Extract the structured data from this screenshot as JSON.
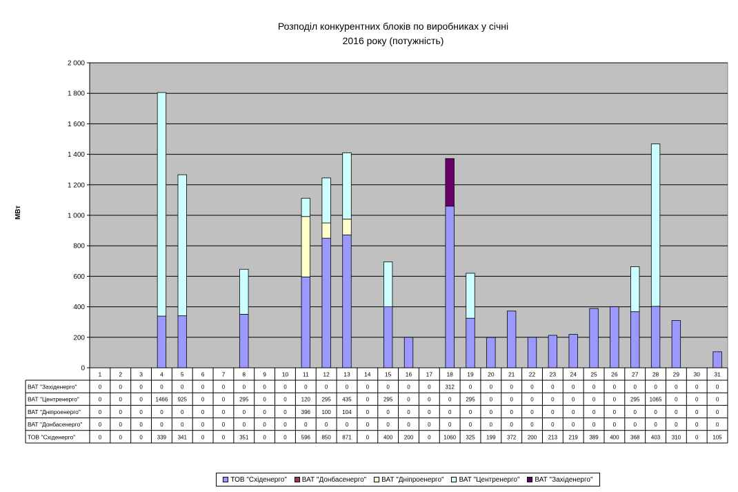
{
  "chart_data": {
    "type": "bar",
    "stacked": true,
    "title_line1": "Розподіл конкурентних блоків по виробниках у січні",
    "title_line2": "2016 року (потужність)",
    "ylabel": "МВт",
    "ylim": [
      0,
      2000
    ],
    "yticks": [
      "0",
      "200",
      "400",
      "600",
      "800",
      "1 000",
      "1 200",
      "1 400",
      "1 600",
      "1 800",
      "2 000"
    ],
    "ytick_values": [
      0,
      200,
      400,
      600,
      800,
      1000,
      1200,
      1400,
      1600,
      1800,
      2000
    ],
    "grid": true,
    "legend_position": "bottom",
    "categories": [
      "1",
      "2",
      "3",
      "4",
      "5",
      "6",
      "7",
      "8",
      "9",
      "10",
      "11",
      "12",
      "13",
      "14",
      "15",
      "16",
      "17",
      "18",
      "19",
      "20",
      "21",
      "22",
      "23",
      "24",
      "25",
      "26",
      "27",
      "28",
      "29",
      "30",
      "31"
    ],
    "series": [
      {
        "name": "ТОВ \"Сxіденерго\"",
        "color": "#9999ff",
        "values": [
          0,
          0,
          0,
          339,
          341,
          0,
          0,
          351,
          0,
          0,
          596,
          850,
          871,
          0,
          400,
          200,
          0,
          1060,
          325,
          199,
          372,
          200,
          213,
          219,
          389,
          400,
          368,
          403,
          310,
          0,
          105
        ]
      },
      {
        "name": "ВАТ \"Донбасенерго\"",
        "color": "#993366",
        "values": [
          0,
          0,
          0,
          0,
          0,
          0,
          0,
          0,
          0,
          0,
          0,
          0,
          0,
          0,
          0,
          0,
          0,
          0,
          0,
          0,
          0,
          0,
          0,
          0,
          0,
          0,
          0,
          0,
          0,
          0,
          0
        ]
      },
      {
        "name": "ВАТ \"Дніпроенерго\"",
        "color": "#ffffcc",
        "values": [
          0,
          0,
          0,
          0,
          0,
          0,
          0,
          0,
          0,
          0,
          396,
          100,
          104,
          0,
          0,
          0,
          0,
          0,
          0,
          0,
          0,
          0,
          0,
          0,
          0,
          0,
          0,
          0,
          0,
          0,
          0
        ]
      },
      {
        "name": "ВАТ \"Центренерго\"",
        "color": "#ccffff",
        "values": [
          0,
          0,
          0,
          1466,
          925,
          0,
          0,
          295,
          0,
          0,
          120,
          295,
          435,
          0,
          295,
          0,
          0,
          0,
          295,
          0,
          0,
          0,
          0,
          0,
          0,
          0,
          295,
          1065,
          0,
          0,
          0
        ]
      },
      {
        "name": "ВАТ \"Західенерго\"",
        "color": "#660066",
        "values": [
          0,
          0,
          0,
          0,
          0,
          0,
          0,
          0,
          0,
          0,
          0,
          0,
          0,
          0,
          0,
          0,
          0,
          312,
          0,
          0,
          0,
          0,
          0,
          0,
          0,
          0,
          0,
          0,
          0,
          0,
          0
        ]
      }
    ],
    "table_row_order": [
      4,
      3,
      2,
      1,
      0
    ],
    "table_labels": [
      "ТОВ \"Сxіденерго\"",
      "ВАТ \"Донбасенерго\"",
      "ВАТ \"Дніпроенерго\"",
      "ВАТ \"Центренерго\"",
      "ВАТ \"Західенерго\""
    ],
    "legend_labels": [
      "ТОВ \"Сxіденерго\"",
      "ВАТ \"Донбасенерго\"",
      "ВАТ \"Дніпроенерго\"",
      "ВАТ \"Центренерго\"",
      "ВАТ \"Західенерго\""
    ]
  }
}
